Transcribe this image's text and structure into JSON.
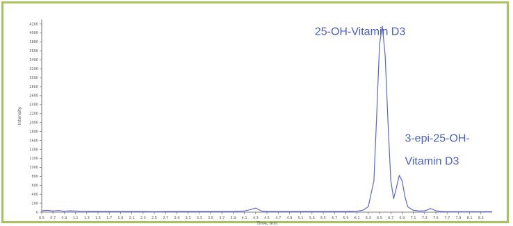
{
  "chart_data": {
    "type": "line",
    "title": "",
    "xlabel": "Time, min",
    "ylabel": "Intensity",
    "xlim": [
      0.5,
      8.5
    ],
    "ylim": [
      0,
      4300
    ],
    "x_ticks": [
      0.5,
      0.7,
      0.9,
      1.1,
      1.3,
      1.5,
      1.7,
      1.9,
      2.1,
      2.3,
      2.5,
      2.7,
      2.9,
      3.1,
      3.3,
      3.5,
      3.7,
      3.9,
      4.1,
      4.3,
      4.5,
      4.7,
      4.9,
      5.1,
      5.3,
      5.5,
      5.7,
      5.9,
      6.1,
      6.3,
      6.5,
      6.7,
      6.9,
      7.1,
      7.3,
      7.5,
      7.7,
      7.9,
      8.1,
      8.3
    ],
    "x_tick_labels": [
      "0.5",
      "0.7",
      "0.9",
      "1.1",
      "1.3",
      "1.5",
      "1.7",
      "1.9",
      "2.1",
      "2.3",
      "2.5",
      "2.7",
      "2.9",
      "3.1",
      "3.3",
      "3.5",
      "3.7",
      "3.9",
      "4.1",
      "4.3",
      "4.5",
      "4.7",
      "4.9",
      "5.1",
      "5.3",
      "5.5",
      "5.7",
      "5.9",
      "6.1",
      "6.3",
      "6.5",
      "6.7",
      "6.9",
      "7.1",
      "7.3",
      "7.5",
      "7.7",
      "7.9",
      "8.1",
      "8.3"
    ],
    "y_ticks": [
      0,
      200,
      400,
      600,
      800,
      1000,
      1200,
      1400,
      1600,
      1800,
      2000,
      2200,
      2400,
      2600,
      2800,
      3000,
      3200,
      3400,
      3600,
      3800,
      4000,
      4200
    ],
    "y_tick_labels": [
      "0",
      "200",
      "400",
      "600",
      "800",
      "1000",
      "1200",
      "1400",
      "1600",
      "1800",
      "2000",
      "2200",
      "2400",
      "2600",
      "2800",
      "3000",
      "3200",
      "3400",
      "3600",
      "3800",
      "4000",
      "4200"
    ],
    "series": [
      {
        "color": "#5b63d6",
        "x": [
          0.5,
          0.6,
          0.7,
          0.8,
          0.9,
          1.0,
          1.1,
          1.2,
          1.3,
          1.5,
          1.7,
          1.9,
          2.1,
          2.3,
          2.5,
          2.7,
          2.9,
          3.1,
          3.3,
          3.5,
          3.7,
          3.9,
          4.1,
          4.2,
          4.3,
          4.35,
          4.4,
          4.5,
          4.6,
          4.7,
          4.9,
          5.1,
          5.3,
          5.5,
          5.7,
          5.9,
          6.1,
          6.2,
          6.3,
          6.4,
          6.45,
          6.5,
          6.55,
          6.6,
          6.65,
          6.7,
          6.75,
          6.8,
          6.85,
          6.9,
          6.95,
          7.0,
          7.1,
          7.2,
          7.3,
          7.35,
          7.4,
          7.45,
          7.5,
          7.6,
          7.7,
          7.9,
          8.1,
          8.3,
          8.5
        ],
        "y": [
          30,
          40,
          25,
          35,
          20,
          30,
          25,
          20,
          20,
          15,
          15,
          15,
          15,
          15,
          10,
          15,
          15,
          15,
          15,
          15,
          15,
          15,
          25,
          55,
          90,
          60,
          25,
          15,
          15,
          15,
          15,
          15,
          15,
          15,
          15,
          15,
          20,
          40,
          120,
          700,
          2200,
          3750,
          4150,
          3500,
          2000,
          700,
          300,
          550,
          820,
          700,
          350,
          120,
          40,
          25,
          30,
          50,
          80,
          60,
          30,
          15,
          10,
          10,
          10,
          10,
          10
        ]
      }
    ],
    "annotations": [
      {
        "text": "25-OH-Vitamin D3",
        "x": 5.35,
        "y": 3950
      },
      {
        "text": "3-epi-25-OH-",
        "x": 6.95,
        "y": 1570
      },
      {
        "text": "Vitamin D3",
        "x": 6.95,
        "y": 1060
      }
    ],
    "grid": false,
    "legend": "none"
  }
}
